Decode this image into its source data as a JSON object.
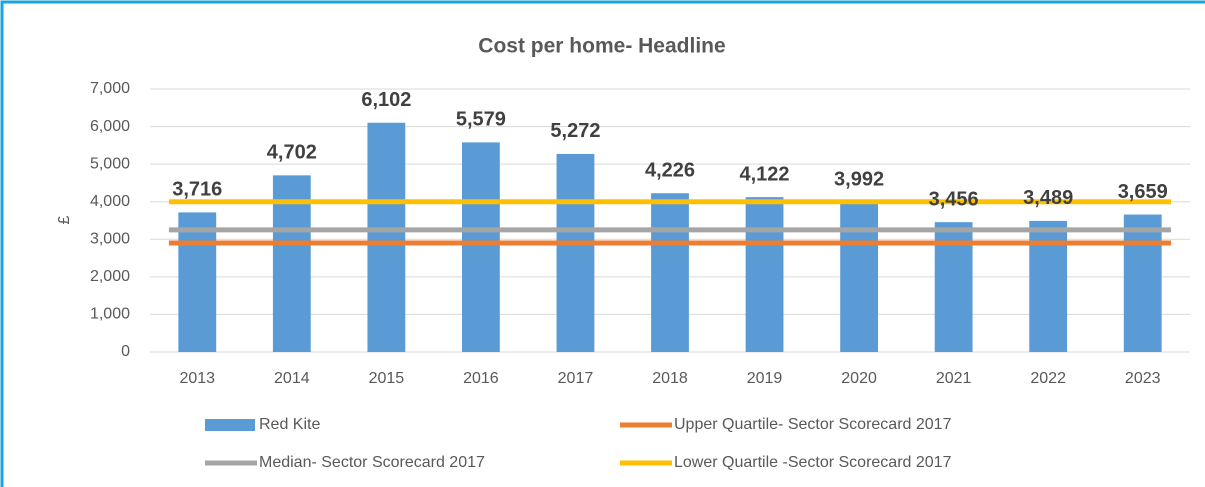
{
  "chart_data": {
    "type": "bar",
    "title": "Cost per home- Headline",
    "y_label": "£",
    "categories": [
      "2013",
      "2014",
      "2015",
      "2016",
      "2017",
      "2018",
      "2019",
      "2020",
      "2021",
      "2022",
      "2023"
    ],
    "series": [
      {
        "name": "Red Kite",
        "type": "bar",
        "color": "#5b9bd5",
        "values": [
          3716,
          4702,
          6102,
          5579,
          5272,
          4226,
          4122,
          3992,
          3456,
          3489,
          3659
        ],
        "value_labels": [
          "3,716",
          "4,702",
          "6,102",
          "5,579",
          "5,272",
          "4,226",
          "4,122",
          "3,992",
          "3,456",
          "3,489",
          "3,659"
        ]
      },
      {
        "name": "Upper Quartile- Sector Scorecard 2017",
        "type": "line",
        "color": "#ed7d31",
        "values": [
          2900,
          2900,
          2900,
          2900,
          2900,
          2900,
          2900,
          2900,
          2900,
          2900,
          2900
        ]
      },
      {
        "name": "Median- Sector Scorecard 2017",
        "type": "line",
        "color": "#a5a5a5",
        "values": [
          3250,
          3250,
          3250,
          3250,
          3250,
          3250,
          3250,
          3250,
          3250,
          3250,
          3250
        ]
      },
      {
        "name": "Lower Quartile -Sector Scorecard 2017",
        "type": "line",
        "color": "#ffc000",
        "values": [
          4000,
          4000,
          4000,
          4000,
          4000,
          4000,
          4000,
          4000,
          4000,
          4000,
          4000
        ]
      }
    ],
    "ylim": [
      0,
      7000
    ],
    "yticks": [
      0,
      {
        "value": 1000,
        "label": "1,000"
      },
      {
        "value": 2000,
        "label": "2,000"
      },
      {
        "value": 3000,
        "label": "3,000"
      },
      {
        "value": 4000,
        "label": "4,000"
      },
      {
        "value": 5000,
        "label": "5,000"
      },
      {
        "value": 6000,
        "label": "6,000"
      },
      {
        "value": 7000,
        "label": "7,000"
      }
    ],
    "grid": true,
    "legend": "bottom"
  }
}
